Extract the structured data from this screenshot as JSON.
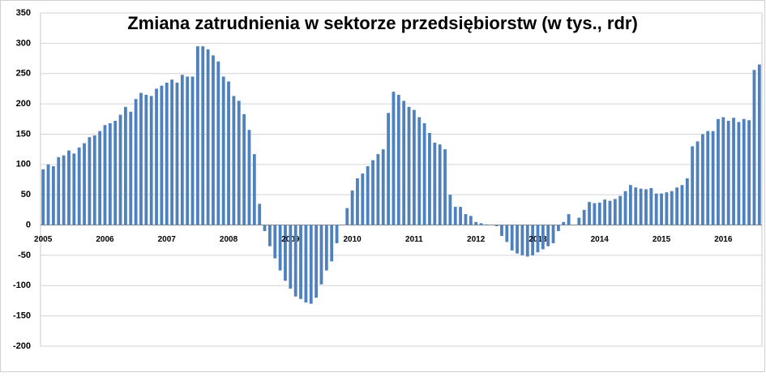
{
  "chart_data": {
    "type": "bar",
    "title": "Zmiana zatrudnienia w sektorze przedsiębiorstw (w tys., rdr)",
    "color": "#4f81bd",
    "ylim": [
      -200,
      350
    ],
    "yticks": [
      350,
      300,
      250,
      200,
      150,
      100,
      50,
      0,
      -50,
      -100,
      -150,
      -200
    ],
    "grid": true,
    "categories": [
      "2005",
      null,
      null,
      null,
      null,
      null,
      null,
      null,
      null,
      null,
      null,
      null,
      "2006",
      null,
      null,
      null,
      null,
      null,
      null,
      null,
      null,
      null,
      null,
      null,
      "2007",
      null,
      null,
      null,
      null,
      null,
      null,
      null,
      null,
      null,
      null,
      null,
      "2008",
      null,
      null,
      null,
      null,
      null,
      null,
      null,
      null,
      null,
      null,
      null,
      "2009",
      null,
      null,
      null,
      null,
      null,
      null,
      null,
      null,
      null,
      null,
      null,
      "2010",
      null,
      null,
      null,
      null,
      null,
      null,
      null,
      null,
      null,
      null,
      null,
      "2011",
      null,
      null,
      null,
      null,
      null,
      null,
      null,
      null,
      null,
      null,
      null,
      "2012",
      null,
      null,
      null,
      null,
      null,
      null,
      null,
      null,
      null,
      null,
      null,
      "2013",
      null,
      null,
      null,
      null,
      null,
      null,
      null,
      null,
      null,
      null,
      null,
      "2014",
      null,
      null,
      null,
      null,
      null,
      null,
      null,
      null,
      null,
      null,
      null,
      "2015",
      null,
      null,
      null,
      null,
      null,
      null,
      null,
      null,
      null,
      null,
      null,
      "2016",
      null,
      null,
      null,
      null,
      null,
      null,
      null
    ],
    "values": [
      92,
      100,
      97,
      112,
      115,
      123,
      118,
      128,
      135,
      145,
      148,
      155,
      165,
      168,
      172,
      182,
      195,
      187,
      208,
      218,
      215,
      213,
      225,
      230,
      235,
      240,
      235,
      248,
      245,
      245,
      295,
      295,
      290,
      280,
      270,
      245,
      237,
      213,
      205,
      183,
      157,
      117,
      35,
      -10,
      -35,
      -55,
      -75,
      -92,
      -105,
      -118,
      -122,
      -128,
      -130,
      -120,
      -98,
      -75,
      -60,
      -30,
      0,
      28,
      57,
      77,
      85,
      97,
      107,
      117,
      125,
      185,
      220,
      215,
      205,
      195,
      190,
      178,
      168,
      152,
      136,
      133,
      125,
      50,
      30,
      30,
      18,
      15,
      5,
      3,
      1,
      0,
      -2,
      -18,
      -28,
      -42,
      -47,
      -50,
      -52,
      -50,
      -45,
      -40,
      -35,
      -30,
      -10,
      5,
      18,
      0,
      12,
      25,
      38,
      36,
      37,
      42,
      40,
      43,
      48,
      56,
      66,
      62,
      60,
      59,
      61,
      52,
      52,
      54,
      56,
      62,
      66,
      77,
      130,
      138,
      150,
      155,
      155,
      175,
      178,
      172,
      177,
      170,
      175,
      173,
      256,
      265
    ]
  }
}
